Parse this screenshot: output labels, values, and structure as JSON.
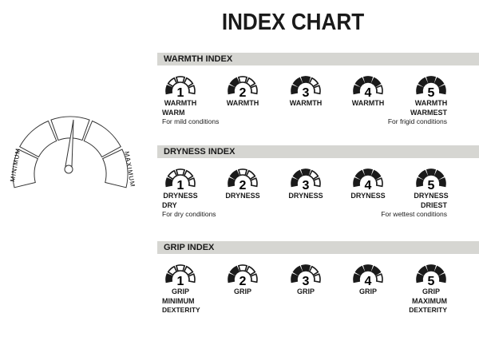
{
  "title": "INDEX CHART",
  "gauge": {
    "min_label": "MINIMUM",
    "max_label": "MAXIMUM"
  },
  "sections": [
    {
      "header": "WARMTH INDEX",
      "unit": "WARMTH",
      "levels": [
        "1",
        "2",
        "3",
        "4",
        "5"
      ],
      "left": {
        "title": "WARM",
        "text": "For mild conditions"
      },
      "right": {
        "title": "WARMEST",
        "text": "For frigid conditions"
      }
    },
    {
      "header": "DRYNESS INDEX",
      "unit": "DRYNESS",
      "levels": [
        "1",
        "2",
        "3",
        "4",
        "5"
      ],
      "left": {
        "title": "DRY",
        "text": "For dry conditions"
      },
      "right": {
        "title": "DRIEST",
        "text": "For wettest conditions"
      }
    },
    {
      "header": "GRIP INDEX",
      "unit": "GRIP",
      "levels": [
        "1",
        "2",
        "3",
        "4",
        "5"
      ],
      "left": {
        "title": "MINIMUM",
        "text": "DEXTERITY"
      },
      "right": {
        "title": "MAXIMUM",
        "text": "DEXTERITY"
      }
    }
  ]
}
